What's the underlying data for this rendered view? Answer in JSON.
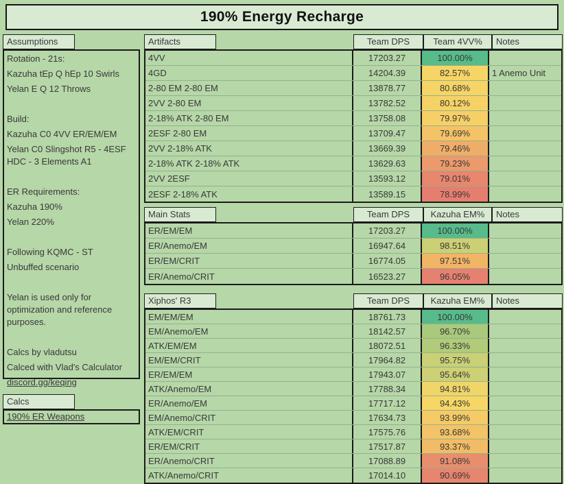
{
  "page": {
    "title": "190% Energy Recharge",
    "bg_color": "#b6d7a8",
    "panel_color": "#d9ead3",
    "scale_green": "#57bb8a",
    "scale_yellow": "#f6d566",
    "scale_red": "#e67e70"
  },
  "assumptions": {
    "tab_label": "Assumptions",
    "lines": [
      {
        "text": "Rotation - 21s:",
        "link": false
      },
      {
        "text": "Kazuha tEp Q hEp 10 Swirls",
        "link": false
      },
      {
        "text": "Yelan E Q 12 Throws",
        "link": false
      },
      {
        "text": "",
        "link": false
      },
      {
        "text": "Build:",
        "link": false
      },
      {
        "text": "Kazuha C0 4VV ER/EM/EM",
        "link": false
      },
      {
        "text": "Yelan C0 Slingshot R5 - 4ESF HDC - 3 Elements A1",
        "link": false
      },
      {
        "text": "",
        "link": false
      },
      {
        "text": "ER Requirements:",
        "link": false
      },
      {
        "text": "Kazuha 190%",
        "link": false
      },
      {
        "text": "Yelan 220%",
        "link": false
      },
      {
        "text": "",
        "link": false
      },
      {
        "text": "Following KQMC - ST",
        "link": false
      },
      {
        "text": "Unbuffed scenario",
        "link": false
      },
      {
        "text": "",
        "link": false
      },
      {
        "text": "Yelan is used only for optimization and reference purposes.",
        "link": false
      },
      {
        "text": "",
        "link": false
      },
      {
        "text": "Calcs by vladutsu",
        "link": false
      },
      {
        "text": "Calced with Vlad's Calculator",
        "link": false
      },
      {
        "text": "discord.gg/keqing",
        "link": true
      }
    ]
  },
  "calcs": {
    "tab_label": "Calcs",
    "link_label": "190% ER Weapons"
  },
  "tables": [
    {
      "tab_label": "Artifacts",
      "columns": [
        "Team DPS",
        "Team 4VV%",
        "Notes"
      ],
      "rows": [
        {
          "name": "4VV",
          "dps": "17203.27",
          "pct": "100.00%",
          "color": "#57bb8a",
          "note": ""
        },
        {
          "name": "4GD",
          "dps": "14204.39",
          "pct": "82.57%",
          "color": "#f6d566",
          "note": "1 Anemo Unit"
        },
        {
          "name": "2-80 EM 2-80 EM",
          "dps": "13878.77",
          "pct": "80.68%",
          "color": "#f6d466",
          "note": ""
        },
        {
          "name": "2VV 2-80 EM",
          "dps": "13782.52",
          "pct": "80.12%",
          "color": "#f6d266",
          "note": ""
        },
        {
          "name": "2-18% ATK 2-80 EM",
          "dps": "13758.08",
          "pct": "79.97%",
          "color": "#f6d067",
          "note": ""
        },
        {
          "name": "2ESF 2-80 EM",
          "dps": "13709.47",
          "pct": "79.69%",
          "color": "#f4c367",
          "note": ""
        },
        {
          "name": "2VV 2-18% ATK",
          "dps": "13669.39",
          "pct": "79.46%",
          "color": "#f0ad68",
          "note": ""
        },
        {
          "name": "2-18% ATK 2-18% ATK",
          "dps": "13629.63",
          "pct": "79.23%",
          "color": "#ec9a6c",
          "note": ""
        },
        {
          "name": "2VV 2ESF",
          "dps": "13593.12",
          "pct": "79.01%",
          "color": "#e8866e",
          "note": ""
        },
        {
          "name": "2ESF 2-18% ATK",
          "dps": "13589.15",
          "pct": "78.99%",
          "color": "#e67e70",
          "note": ""
        }
      ]
    },
    {
      "tab_label": "Main Stats",
      "columns": [
        "Team DPS",
        "Kazuha EM%",
        "Notes"
      ],
      "rows": [
        {
          "name": "ER/EM/EM",
          "dps": "17203.27",
          "pct": "100.00%",
          "color": "#57bb8a",
          "note": ""
        },
        {
          "name": "ER/Anemo/EM",
          "dps": "16947.64",
          "pct": "98.51%",
          "color": "#ccd075",
          "note": ""
        },
        {
          "name": "ER/EM/CRIT",
          "dps": "16774.05",
          "pct": "97.51%",
          "color": "#f2b566",
          "note": ""
        },
        {
          "name": "ER/Anemo/CRIT",
          "dps": "16523.27",
          "pct": "96.05%",
          "color": "#e6816f",
          "note": ""
        }
      ]
    },
    {
      "tab_label": "Xiphos' R3",
      "columns": [
        "Team DPS",
        "Kazuha EM%",
        "Notes"
      ],
      "rows": [
        {
          "name": "EM/EM/EM",
          "dps": "18761.73",
          "pct": "100.00%",
          "color": "#57bb8a",
          "note": ""
        },
        {
          "name": "EM/Anemo/EM",
          "dps": "18142.57",
          "pct": "96.70%",
          "color": "#a9c97c",
          "note": ""
        },
        {
          "name": "ATK/EM/EM",
          "dps": "18072.51",
          "pct": "96.33%",
          "color": "#b0cb7a",
          "note": ""
        },
        {
          "name": "EM/EM/CRIT",
          "dps": "17964.82",
          "pct": "95.75%",
          "color": "#c9d076",
          "note": ""
        },
        {
          "name": "ER/EM/EM",
          "dps": "17943.07",
          "pct": "95.64%",
          "color": "#cdd075",
          "note": ""
        },
        {
          "name": "ATK/Anemo/EM",
          "dps": "17788.34",
          "pct": "94.81%",
          "color": "#f0d668",
          "note": ""
        },
        {
          "name": "ER/Anemo/EM",
          "dps": "17717.12",
          "pct": "94.43%",
          "color": "#f6d766",
          "note": ""
        },
        {
          "name": "EM/Anemo/CRIT",
          "dps": "17634.73",
          "pct": "93.99%",
          "color": "#f5cb67",
          "note": ""
        },
        {
          "name": "ATK/EM/CRIT",
          "dps": "17575.76",
          "pct": "93.68%",
          "color": "#f4c367",
          "note": ""
        },
        {
          "name": "ER/EM/CRIT",
          "dps": "17517.87",
          "pct": "93.37%",
          "color": "#f2bc67",
          "note": ""
        },
        {
          "name": "ER/Anemo/CRIT",
          "dps": "17088.89",
          "pct": "91.08%",
          "color": "#e98e6d",
          "note": ""
        },
        {
          "name": "ATK/Anemo/CRIT",
          "dps": "17014.10",
          "pct": "90.69%",
          "color": "#e7856e",
          "note": ""
        }
      ]
    }
  ]
}
